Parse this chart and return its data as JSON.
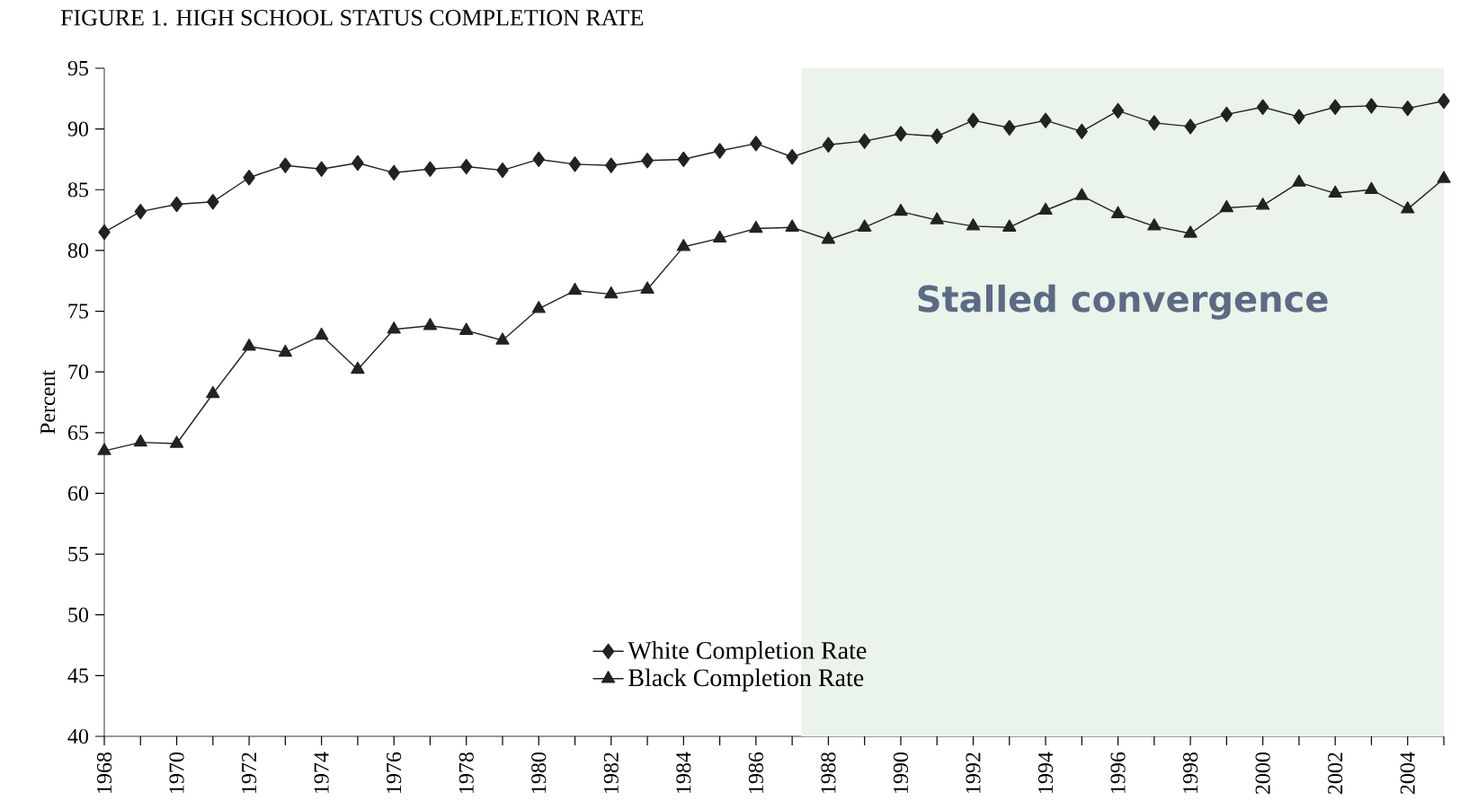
{
  "chart_data": {
    "type": "line",
    "title": "FIGURE 1. HIGH SCHOOL STATUS COMPLETION RATE",
    "ylabel": "Percent",
    "x": [
      1968,
      1969,
      1970,
      1971,
      1972,
      1973,
      1974,
      1975,
      1976,
      1977,
      1978,
      1979,
      1980,
      1981,
      1982,
      1983,
      1984,
      1985,
      1986,
      1987,
      1988,
      1989,
      1990,
      1991,
      1992,
      1993,
      1994,
      1995,
      1996,
      1997,
      1998,
      1999,
      2000,
      2001,
      2002,
      2003,
      2004,
      2005
    ],
    "series": [
      {
        "name": "White Completion Rate",
        "color": "#222222",
        "marker": "diamond",
        "values": [
          81.5,
          83.2,
          83.8,
          84.0,
          86.0,
          87.0,
          86.7,
          87.2,
          86.4,
          86.7,
          86.9,
          86.6,
          87.5,
          87.1,
          87.0,
          87.4,
          87.5,
          88.2,
          88.8,
          87.7,
          88.7,
          89.0,
          89.6,
          89.4,
          90.7,
          90.1,
          90.7,
          89.8,
          91.5,
          90.5,
          90.2,
          91.2,
          91.8,
          91.0,
          91.8,
          91.9,
          91.7,
          92.3
        ]
      },
      {
        "name": "Black Completion Rate",
        "color": "#222222",
        "marker": "triangle",
        "values": [
          63.5,
          64.2,
          64.1,
          68.2,
          72.1,
          71.6,
          73.0,
          70.2,
          73.5,
          73.8,
          73.4,
          72.6,
          75.2,
          76.7,
          76.4,
          76.8,
          80.3,
          81.0,
          81.8,
          81.9,
          80.9,
          81.9,
          83.2,
          82.5,
          82.0,
          81.9,
          83.3,
          84.5,
          83.0,
          82.0,
          81.4,
          83.5,
          83.7,
          85.6,
          84.7,
          85.0,
          83.4,
          85.9
        ]
      }
    ],
    "xlim": [
      1968,
      2005
    ],
    "xticks": [
      1968,
      {
        "value": 1969,
        "label": null
      },
      1970,
      {
        "value": 1971,
        "label": null
      },
      1972,
      {
        "value": 1973,
        "label": null
      },
      1974,
      {
        "value": 1975,
        "label": null
      },
      1976,
      {
        "value": 1977,
        "label": null
      },
      1978,
      {
        "value": 1979,
        "label": null
      },
      1980,
      {
        "value": 1981,
        "label": null
      },
      1982,
      {
        "value": 1983,
        "label": null
      },
      1984,
      {
        "value": 1985,
        "label": null
      },
      1986,
      {
        "value": 1987,
        "label": null
      },
      1988,
      {
        "value": 1989,
        "label": null
      },
      1990,
      {
        "value": 1991,
        "label": null
      },
      1992,
      {
        "value": 1993,
        "label": null
      },
      1994,
      {
        "value": 1995,
        "label": null
      },
      1996,
      {
        "value": 1997,
        "label": null
      },
      1998,
      {
        "value": 1999,
        "label": null
      },
      2000,
      {
        "value": 2001,
        "label": null
      },
      2002,
      {
        "value": 2003,
        "label": null
      },
      2004,
      {
        "value": 2005,
        "label": null
      }
    ],
    "ylim": [
      40,
      95
    ],
    "yticks": [
      40,
      45,
      50,
      55,
      60,
      65,
      70,
      75,
      80,
      85,
      90,
      95
    ],
    "bands": [
      {
        "axis": "x",
        "from": 1987.25,
        "to": 2005,
        "label": "Stalled convergence",
        "color": "#eaf4ea"
      }
    ],
    "legend": "bottom left",
    "grid": false,
    "line_style": "solid"
  }
}
